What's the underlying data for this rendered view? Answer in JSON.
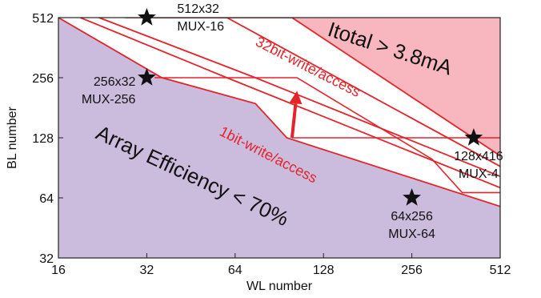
{
  "chart_data": {
    "type": "line",
    "xlabel": "WL number",
    "ylabel": "BL number",
    "x_scale": "log2",
    "y_scale": "log2",
    "xlim": [
      16,
      512
    ],
    "ylim": [
      32,
      512
    ],
    "xticks": [
      "16",
      "32",
      "64",
      "128",
      "256",
      "512"
    ],
    "yticks": [
      "32",
      "64",
      "128",
      "256",
      "512"
    ],
    "grid": false,
    "regions": [
      {
        "name": "Itotal > 3.8mA",
        "color": "#f8b7be"
      },
      {
        "name": "Array Efficiency < 70%",
        "color": "#cbbcdd"
      }
    ],
    "curves": [
      {
        "label": "",
        "x": [
          34,
          100,
          512
        ],
        "y": [
          512,
          512,
          104
        ]
      },
      {
        "label": "",
        "x": [
          27,
          60,
          512
        ],
        "y": [
          512,
          512,
          92
        ]
      },
      {
        "label": "",
        "x": [
          22,
          75,
          512
        ],
        "y": [
          512,
          256,
          82
        ]
      },
      {
        "label": "",
        "x": [
          19,
          60,
          512
        ],
        "y": [
          512,
          256,
          72
        ]
      },
      {
        "label": "1bit-write/access",
        "x": [
          16,
          36,
          75,
          96,
          512
        ],
        "y": [
          512,
          256,
          190,
          128,
          58
        ]
      }
    ],
    "write_lines": [
      {
        "label": "32bit-write/access",
        "x": [
          34,
          104,
          300,
          380,
          512
        ],
        "y": [
          256,
          256,
          100,
          68,
          68
        ]
      },
      {
        "label": "1bit-write/access",
        "x": [
          100,
          512
        ],
        "y": [
          128,
          128
        ]
      }
    ],
    "arrow": {
      "from": [
        100,
        128
      ],
      "to": [
        104,
        220
      ]
    },
    "points": [
      {
        "label": "512x32",
        "sublabel": "MUX-16",
        "x": 32,
        "y": 512
      },
      {
        "label": "256x32",
        "sublabel": "MUX-256",
        "x": 32,
        "y": 256
      },
      {
        "label": "128x416",
        "sublabel": "MUX-4",
        "x": 416,
        "y": 128
      },
      {
        "label": "64x256",
        "sublabel": "MUX-64",
        "x": 256,
        "y": 64
      }
    ],
    "annotations": {
      "upper_region": "Itotal > 3.8mA",
      "lower_region": "Array Efficiency < 70%",
      "upper_series": "32bit-write/access",
      "lower_series": "1bit-write/access"
    },
    "colors": {
      "curve": "#e3242b",
      "upper_fill": "#f8b7be",
      "lower_fill": "#cbbcdd"
    }
  }
}
